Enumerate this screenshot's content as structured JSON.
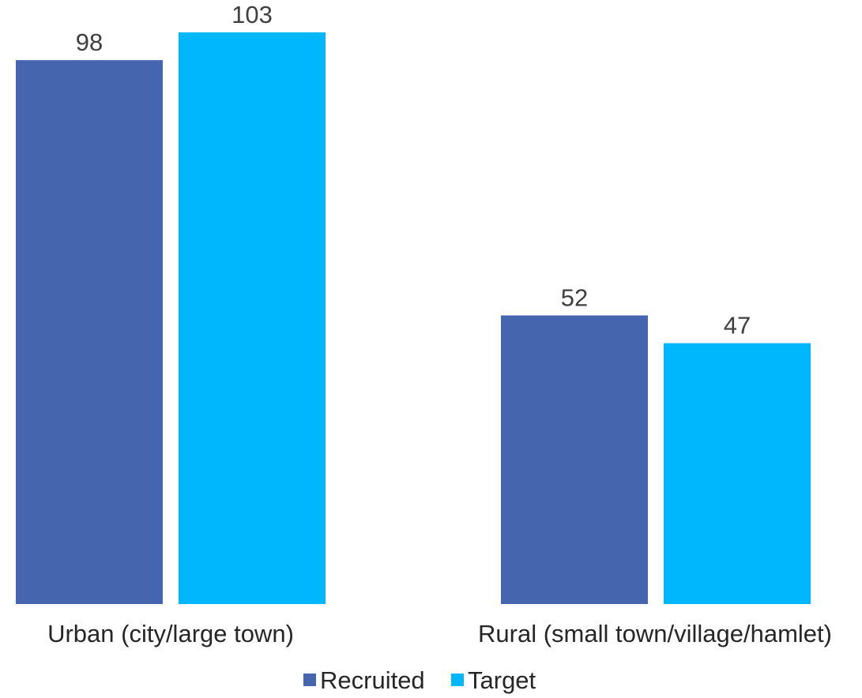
{
  "chart_data": {
    "type": "bar",
    "categories": [
      "Urban (city/large town)",
      "Rural (small town/village/hamlet)"
    ],
    "series": [
      {
        "name": "Recruited",
        "color": "#4565AF",
        "values": [
          98,
          52
        ]
      },
      {
        "name": "Target",
        "color": "#00B6FD",
        "values": [
          103,
          47
        ]
      }
    ],
    "title": "",
    "xlabel": "",
    "ylabel": "",
    "ylim": [
      0,
      103
    ],
    "grid": false,
    "legend": "bottom-center"
  }
}
